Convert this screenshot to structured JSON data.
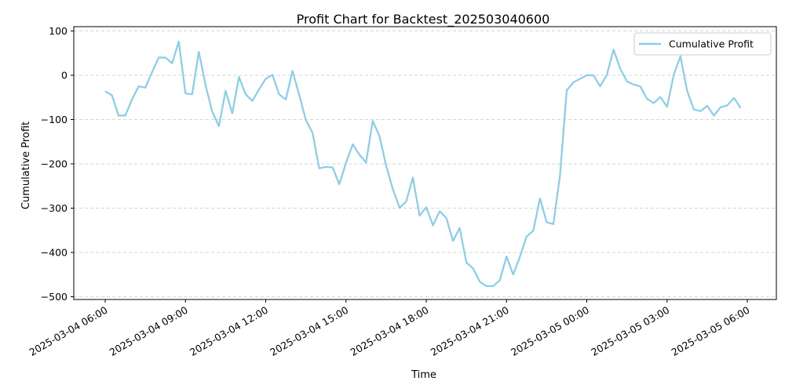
{
  "chart_data": {
    "type": "line",
    "title": "Profit Chart for Backtest_202503040600",
    "xlabel": "Time",
    "ylabel": "Cumulative Profit",
    "x_start": "2025-03-04 06:00",
    "x_tick_labels": [
      "2025-03-04 06:00",
      "2025-03-04 09:00",
      "2025-03-04 12:00",
      "2025-03-04 15:00",
      "2025-03-04 18:00",
      "2025-03-04 21:00",
      "2025-03-05 00:00",
      "2025-03-05 03:00",
      "2025-03-05 06:00"
    ],
    "y_ticks": [
      100,
      0,
      -100,
      -200,
      -300,
      -400,
      -500
    ],
    "ylim": [
      -505,
      105
    ],
    "grid": "y-dashed",
    "legend_position": "top-right",
    "series": [
      {
        "name": "Cumulative Profit",
        "color": "#87ceeb",
        "x": [
          "2025-03-04 06:00",
          "2025-03-04 06:15",
          "2025-03-04 06:30",
          "2025-03-04 06:45",
          "2025-03-04 07:00",
          "2025-03-04 07:15",
          "2025-03-04 07:30",
          "2025-03-04 07:45",
          "2025-03-04 08:00",
          "2025-03-04 08:15",
          "2025-03-04 08:30",
          "2025-03-04 08:45",
          "2025-03-04 09:00",
          "2025-03-04 09:15",
          "2025-03-04 09:30",
          "2025-03-04 09:45",
          "2025-03-04 10:00",
          "2025-03-04 10:15",
          "2025-03-04 10:30",
          "2025-03-04 10:45",
          "2025-03-04 11:00",
          "2025-03-04 11:15",
          "2025-03-04 11:30",
          "2025-03-04 11:45",
          "2025-03-04 12:00",
          "2025-03-04 12:15",
          "2025-03-04 12:30",
          "2025-03-04 12:45",
          "2025-03-04 13:00",
          "2025-03-04 13:15",
          "2025-03-04 13:30",
          "2025-03-04 13:45",
          "2025-03-04 14:00",
          "2025-03-04 14:15",
          "2025-03-04 14:30",
          "2025-03-04 14:45",
          "2025-03-04 15:00",
          "2025-03-04 15:15",
          "2025-03-04 15:30",
          "2025-03-04 15:45",
          "2025-03-04 16:00",
          "2025-03-04 16:15",
          "2025-03-04 16:30",
          "2025-03-04 16:45",
          "2025-03-04 17:00",
          "2025-03-04 17:15",
          "2025-03-04 17:30",
          "2025-03-04 17:45",
          "2025-03-04 18:00",
          "2025-03-04 18:15",
          "2025-03-04 18:30",
          "2025-03-04 18:45",
          "2025-03-04 19:00",
          "2025-03-04 19:15",
          "2025-03-04 19:30",
          "2025-03-04 19:45",
          "2025-03-04 20:00",
          "2025-03-04 20:15",
          "2025-03-04 20:30",
          "2025-03-04 20:45",
          "2025-03-04 21:00",
          "2025-03-04 21:15",
          "2025-03-04 21:30",
          "2025-03-04 21:45",
          "2025-03-04 22:00",
          "2025-03-04 22:15",
          "2025-03-04 22:30",
          "2025-03-04 22:45",
          "2025-03-04 23:00",
          "2025-03-04 23:15",
          "2025-03-04 23:30",
          "2025-03-04 23:45",
          "2025-03-05 00:00",
          "2025-03-05 00:15",
          "2025-03-05 00:30",
          "2025-03-05 00:45",
          "2025-03-05 01:00",
          "2025-03-05 01:15",
          "2025-03-05 01:30",
          "2025-03-05 01:45",
          "2025-03-05 02:00",
          "2025-03-05 02:15",
          "2025-03-05 02:30",
          "2025-03-05 02:45",
          "2025-03-05 03:00",
          "2025-03-05 03:15",
          "2025-03-05 03:30",
          "2025-03-05 03:45",
          "2025-03-05 04:00",
          "2025-03-05 04:15",
          "2025-03-05 04:30",
          "2025-03-05 04:45",
          "2025-03-05 05:00",
          "2025-03-05 05:15",
          "2025-03-05 05:30",
          "2025-03-05 05:45"
        ],
        "values": [
          -36,
          -45,
          -91,
          -91,
          -55,
          -25,
          -28,
          7,
          40,
          40,
          27,
          76,
          -41,
          -43,
          53,
          -22,
          -82,
          -115,
          -35,
          -86,
          -4,
          -43,
          -58,
          -32,
          -8,
          1,
          -43,
          -55,
          10,
          -44,
          -101,
          -130,
          -210,
          -207,
          -208,
          -246,
          -198,
          -156,
          -179,
          -197,
          -103,
          -137,
          -204,
          -257,
          -299,
          -285,
          -231,
          -317,
          -298,
          -339,
          -307,
          -322,
          -374,
          -345,
          -423,
          -436,
          -466,
          -476,
          -476,
          -463,
          -409,
          -450,
          -410,
          -364,
          -351,
          -278,
          -332,
          -336,
          -225,
          -34,
          -16,
          -8,
          0,
          0,
          -25,
          1,
          58,
          15,
          -14,
          -21,
          -25,
          -53,
          -63,
          -49,
          -71,
          1,
          43,
          -35,
          -77,
          -81,
          -69,
          -91,
          -72,
          -68,
          -51,
          -74
        ]
      }
    ]
  }
}
